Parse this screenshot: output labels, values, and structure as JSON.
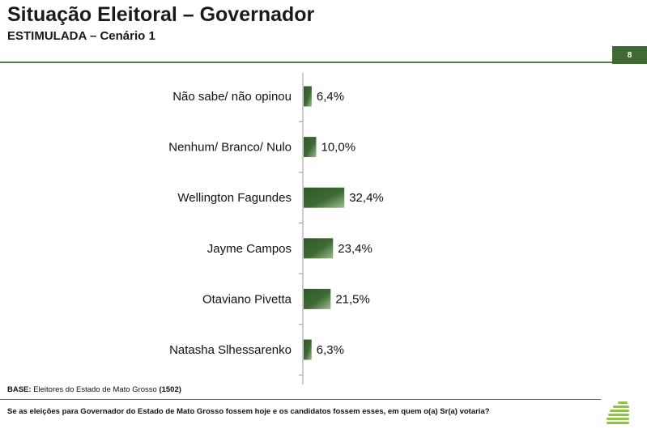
{
  "header": {
    "title": "Situação Eleitoral – Governador",
    "subtitle": "ESTIMULADA – Cenário 1",
    "page_number": "8"
  },
  "footer": {
    "base_label": "BASE:",
    "base_text": " Eleitores do Estado de Mato Grosso ",
    "base_count": "(1502)",
    "question": "Se as eleições para Governador do Estado de Mato Grosso fossem hoje e os candidatos fossem esses, em quem o(a) Sr(a) votaria?"
  },
  "colors": {
    "accent": "#3f6a34",
    "bar_dark": "#2f5a28",
    "bar_light": "#9dbb8e",
    "logo": "#8cc63f"
  },
  "chart_data": {
    "type": "bar",
    "orientation": "horizontal",
    "categories": [
      "Não sabe/ não opinou",
      "Nenhum/ Branco/ Nulo",
      "Wellington Fagundes",
      "Jayme Campos",
      "Otaviano Pivetta",
      "Natasha Slhessarenko"
    ],
    "values": [
      6.4,
      10.0,
      32.4,
      23.4,
      21.5,
      6.3
    ],
    "value_labels": [
      "6,4%",
      "10,0%",
      "32,4%",
      "23,4%",
      "21,5%",
      "6,3%"
    ],
    "xlim": [
      0,
      100
    ],
    "grid": false,
    "legend": "none"
  }
}
